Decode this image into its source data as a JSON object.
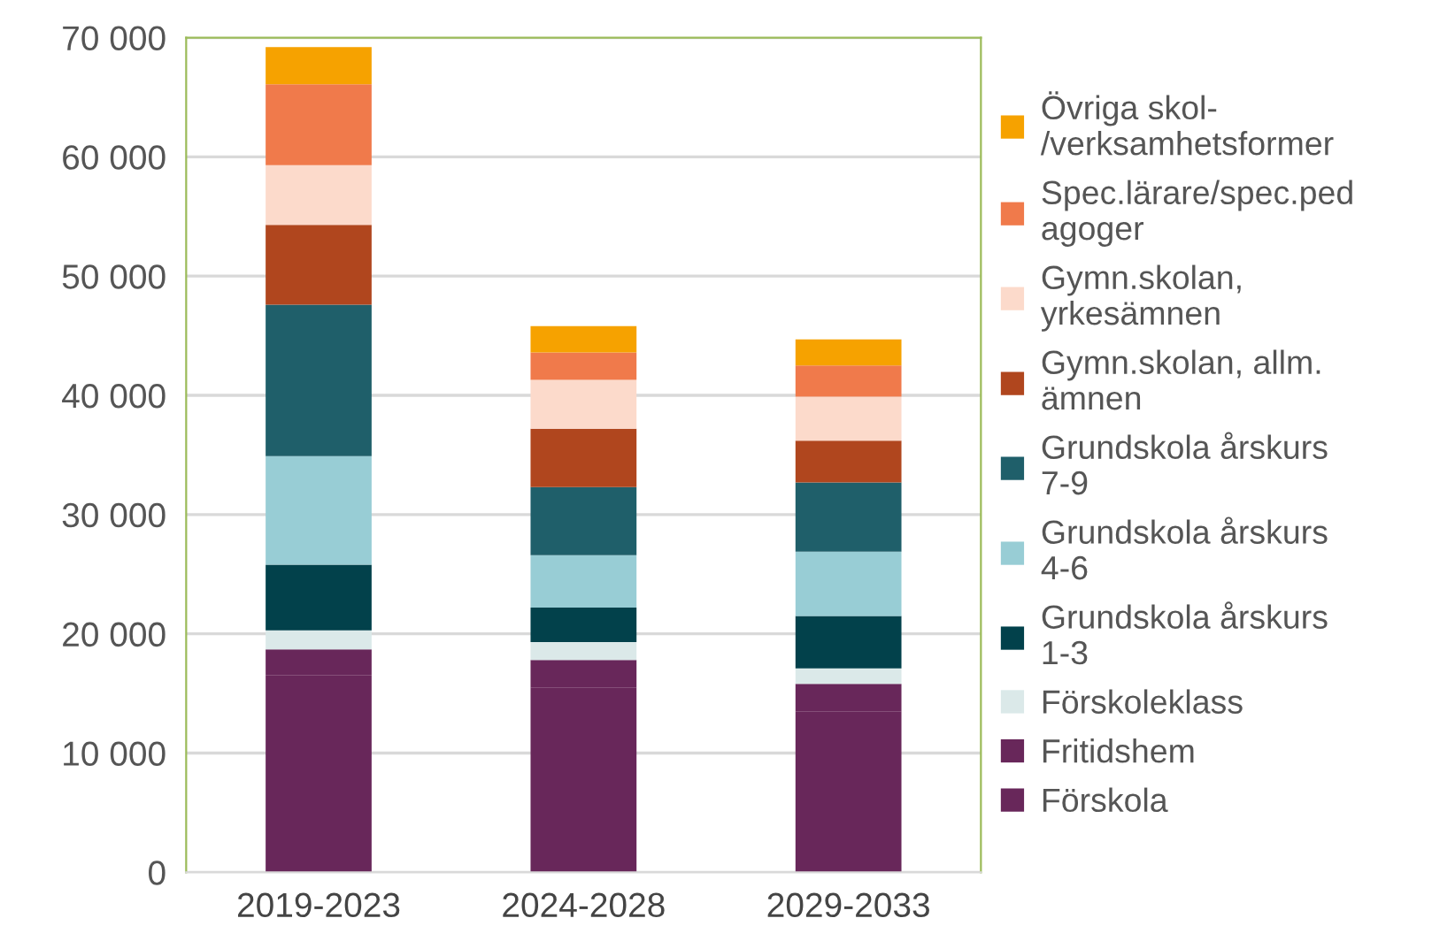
{
  "chart_data": {
    "type": "bar",
    "stacked": true,
    "categories": [
      "2019-2023",
      "2024-2028",
      "2029-2033"
    ],
    "series": [
      {
        "name": "Förskola",
        "color": "#68275a",
        "values": [
          16500,
          15500,
          13500
        ]
      },
      {
        "name": "Fritidshem",
        "color": "#68275a",
        "values": [
          2200,
          2300,
          2300
        ]
      },
      {
        "name": "Förskoleklass",
        "color": "#dbe9e9",
        "values": [
          1600,
          1500,
          1300
        ]
      },
      {
        "name": "Grundskola årskurs 1-3",
        "color": "#02414b",
        "values": [
          5500,
          2900,
          4400
        ]
      },
      {
        "name": "Grundskola årskurs 4-6",
        "color": "#98cdd5",
        "values": [
          9100,
          4400,
          5400
        ]
      },
      {
        "name": "Grundskola årskurs 7-9",
        "color": "#1f5f6a",
        "values": [
          12700,
          5700,
          5800
        ]
      },
      {
        "name": "Gymn.skolan, allm. ämnen",
        "color": "#b0461e",
        "values": [
          6700,
          4900,
          3500
        ]
      },
      {
        "name": "Gymn.skolan, yrkesämnen",
        "color": "#fcdacb",
        "values": [
          5000,
          4100,
          3700
        ]
      },
      {
        "name": "Spec.lärare/spec.pedagoger",
        "color": "#f07a4b",
        "values": [
          6800,
          2300,
          2600
        ]
      },
      {
        "name": "Övriga skol-/verksamhetsformer",
        "color": "#f6a200",
        "values": [
          3100,
          2200,
          2200
        ]
      }
    ],
    "ylim": [
      0,
      70000
    ],
    "yticks": [
      {
        "value": 0,
        "label": "0"
      },
      {
        "value": 10000,
        "label": "10 000"
      },
      {
        "value": 20000,
        "label": "20 000"
      },
      {
        "value": 30000,
        "label": "30 000"
      },
      {
        "value": 40000,
        "label": "40 000"
      },
      {
        "value": 50000,
        "label": "50 000"
      },
      {
        "value": 60000,
        "label": "60 000"
      },
      {
        "value": 70000,
        "label": "70 000"
      }
    ],
    "grid": "y",
    "legend": "right"
  }
}
